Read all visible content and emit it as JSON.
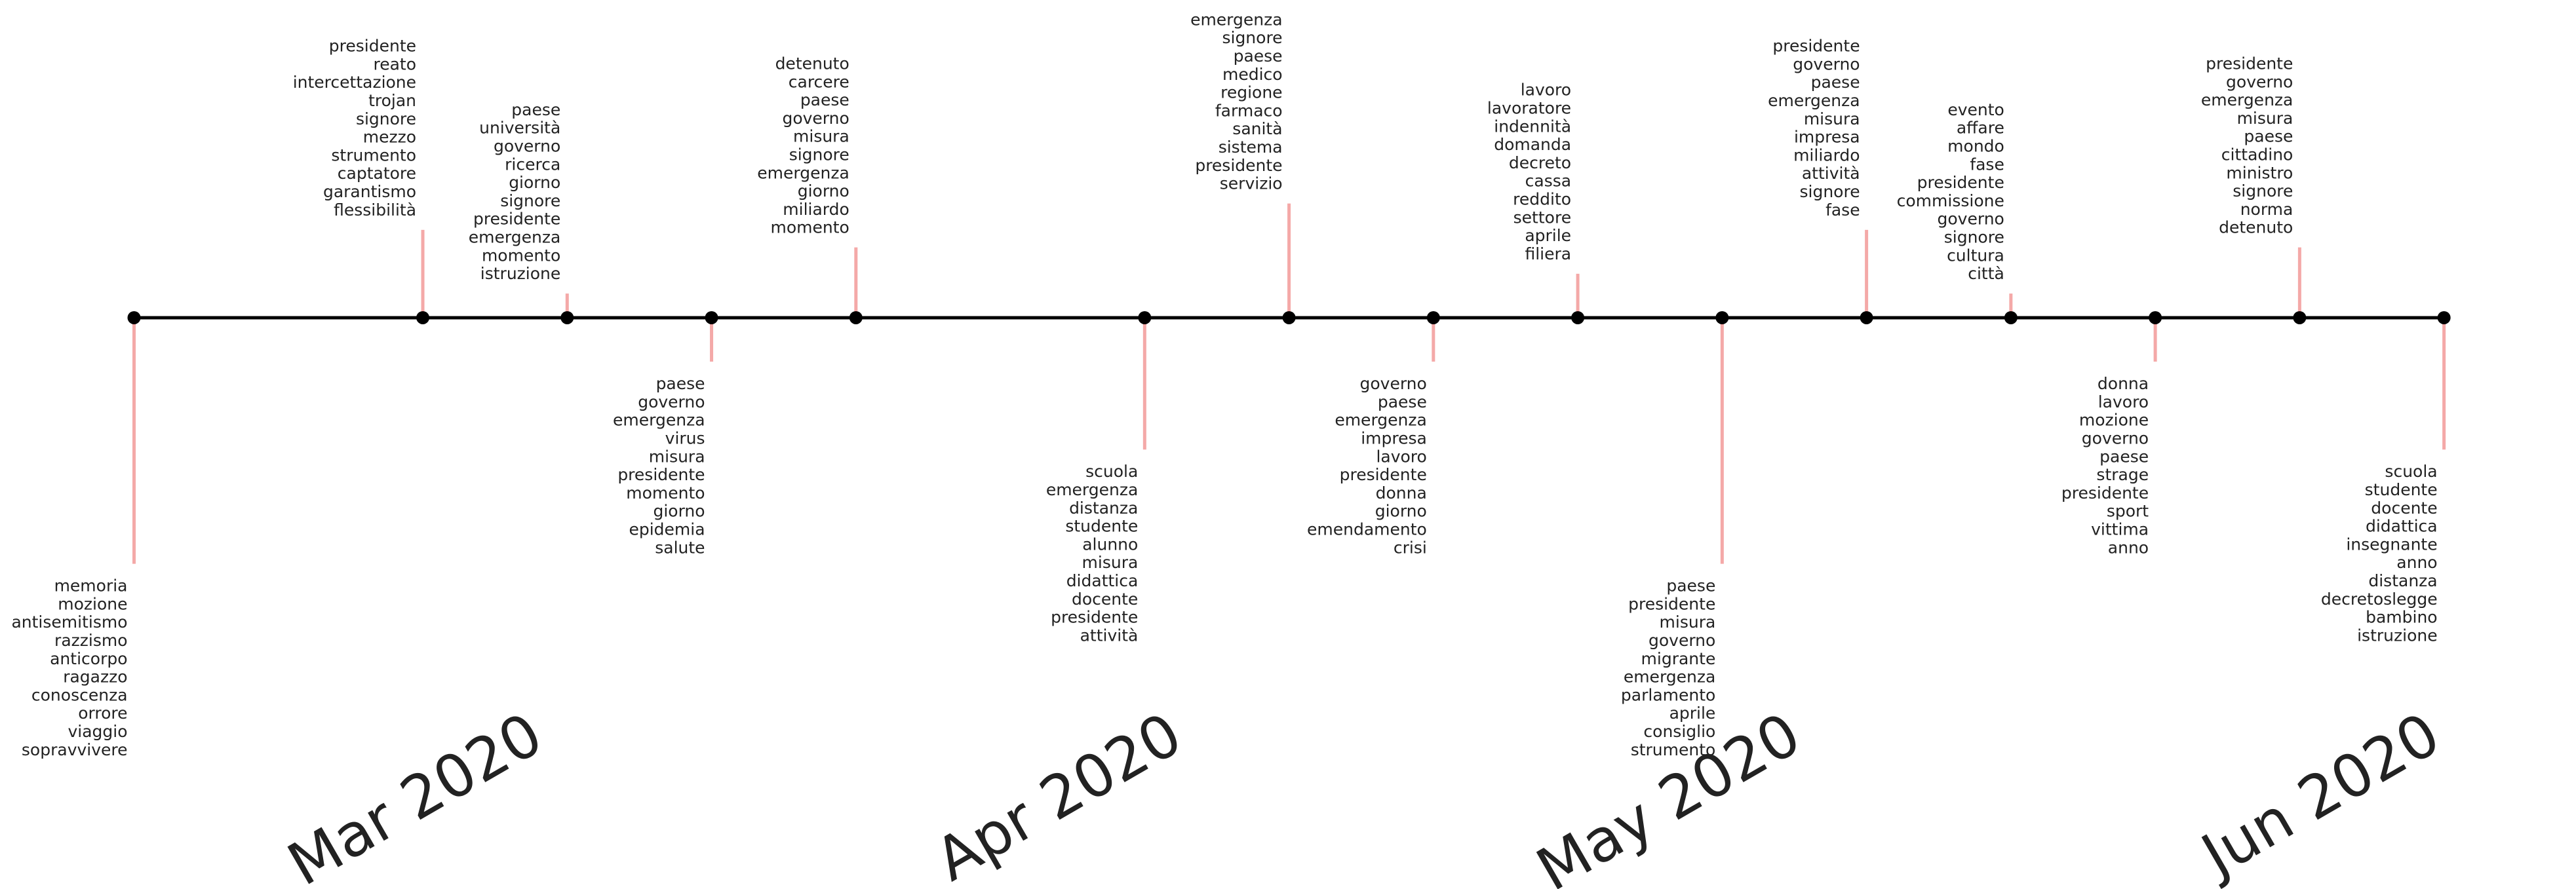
{
  "chart_data": {
    "type": "timeline",
    "x": [
      41,
      55,
      62,
      69,
      76,
      90,
      97,
      104,
      111,
      118,
      125,
      132,
      139,
      146,
      153
    ],
    "values": [
      -5.6,
      2,
      0.55,
      -1,
      1.6,
      -3,
      2.6,
      -1,
      1,
      -5.6,
      2,
      0.55,
      -1,
      1.6,
      -3
    ],
    "labels": [
      [
        "memoria",
        "mozione",
        "antisemitismo",
        "razzismo",
        "anticorpo",
        "ragazzo",
        "conoscenza",
        "orrore",
        "viaggio",
        "sopravvivere"
      ],
      [
        "presidente",
        "reato",
        "intercettazione",
        "trojan",
        "signore",
        "mezzo",
        "strumento",
        "captatore",
        "garantismo",
        "flessibilità"
      ],
      [
        "paese",
        "università",
        "governo",
        "ricerca",
        "giorno",
        "signore",
        "presidente",
        "emergenza",
        "momento",
        "istruzione"
      ],
      [
        "paese",
        "governo",
        "emergenza",
        "virus",
        "misura",
        "presidente",
        "momento",
        "giorno",
        "epidemia",
        "salute"
      ],
      [
        "detenuto",
        "carcere",
        "paese",
        "governo",
        "misura",
        "signore",
        "emergenza",
        "giorno",
        "miliardo",
        "momento"
      ],
      [
        "scuola",
        "emergenza",
        "distanza",
        "studente",
        "alunno",
        "misura",
        "didattica",
        "docente",
        "presidente",
        "attività"
      ],
      [
        "emergenza",
        "signore",
        "paese",
        "medico",
        "regione",
        "farmaco",
        "sanità",
        "sistema",
        "presidente",
        "servizio"
      ],
      [
        "governo",
        "paese",
        "emergenza",
        "impresa",
        "lavoro",
        "presidente",
        "donna",
        "giorno",
        "emendamento",
        "crisi"
      ],
      [
        "lavoro",
        "lavoratore",
        "indennità",
        "domanda",
        "decreto",
        "cassa",
        "reddito",
        "settore",
        "aprile",
        "filiera"
      ],
      [
        "paese",
        "presidente",
        "misura",
        "governo",
        "migrante",
        "emergenza",
        "parlamento",
        "aprile",
        "consiglio",
        "strumento"
      ],
      [
        "presidente",
        "governo",
        "paese",
        "emergenza",
        "misura",
        "impresa",
        "miliardo",
        "attività",
        "signore",
        "fase"
      ],
      [
        "evento",
        "affare",
        "mondo",
        "fase",
        "presidente",
        "commissione",
        "governo",
        "signore",
        "cultura",
        "città"
      ],
      [
        "donna",
        "lavoro",
        "mozione",
        "governo",
        "paese",
        "strage",
        "presidente",
        "sport",
        "vittima",
        "anno"
      ],
      [
        "presidente",
        "governo",
        "emergenza",
        "misura",
        "paese",
        "cittadino",
        "ministro",
        "signore",
        "norma",
        "detenuto"
      ],
      [
        "scuola",
        "studente",
        "docente",
        "didattica",
        "insegnante",
        "anno",
        "distanza",
        "decretoslegge",
        "bambino",
        "istruzione"
      ]
    ],
    "xlim": [
      34.5,
      159.4
    ],
    "ylim": [
      -13,
      7.23
    ],
    "xticks": [
      {
        "value": 61,
        "label": "Mar 2020"
      },
      {
        "value": 92,
        "label": "Apr 2020"
      },
      {
        "value": 122,
        "label": "May 2020"
      },
      {
        "value": 153,
        "label": "Jun 2020"
      }
    ],
    "stem_color": "#f4a9a8",
    "point_color": "#000000"
  }
}
